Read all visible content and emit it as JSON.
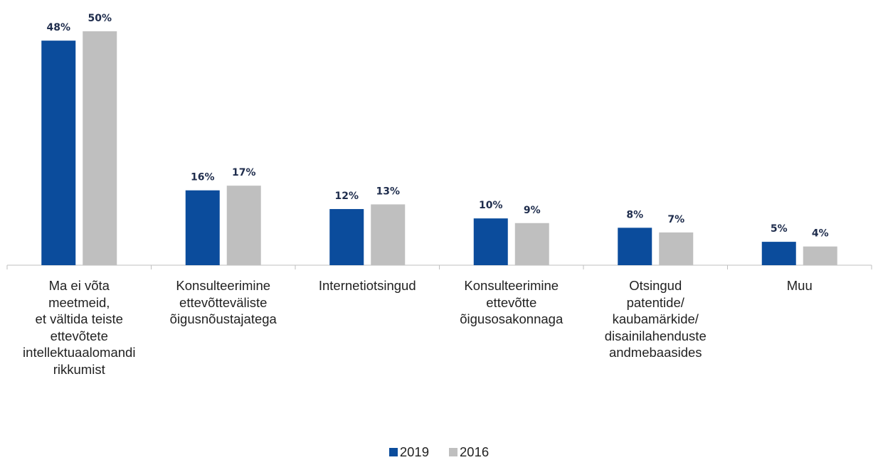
{
  "chart_data": {
    "type": "bar",
    "categories": [
      "Ma ei võta\nmeetmeid,\net vältida teiste\nettevõtete\nintellektuaalomandi\nrikkumist",
      "Konsulteerimine\nettevõtteväliste\nõigusnõustajatega",
      "Internetiotsingud",
      "Konsulteerimine\nettevõtte\nõigusosakonnaga",
      "Otsingud\npatentide/\nkaubamärkide/\ndisainilahenduste\nandmebaasides",
      "Muu"
    ],
    "series": [
      {
        "name": "2019",
        "color": "#0b4c9c",
        "values": [
          48,
          16,
          12,
          10,
          8,
          5
        ],
        "value_labels": [
          "48%",
          "16%",
          "12%",
          "10%",
          "8%",
          "5%"
        ]
      },
      {
        "name": "2016",
        "color": "#bfbfbf",
        "values": [
          50,
          17,
          13,
          9,
          7,
          4
        ],
        "value_labels": [
          "50%",
          "17%",
          "13%",
          "9%",
          "7%",
          "4%"
        ]
      }
    ],
    "legend": "bottom"
  }
}
